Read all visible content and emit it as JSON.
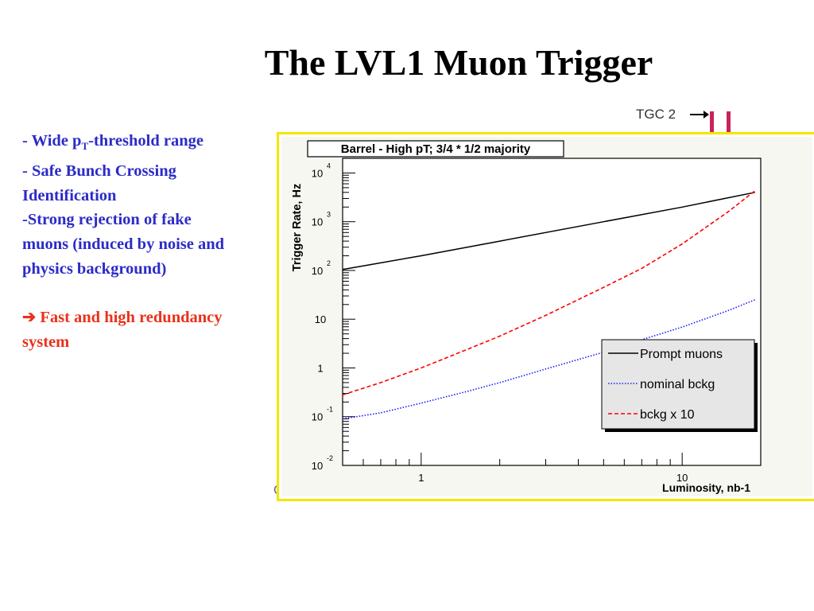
{
  "slide": {
    "title": "The LVL1 Muon Trigger",
    "bullets": {
      "b1_pre": "- Wide p",
      "b1_sub": "T",
      "b1_post": "-threshold range",
      "b2_l1": "- Safe Bunch Crossing",
      "b2_l2": "Identification",
      "b3_l1_dash": "-",
      "b3_l1": "Strong rejection of fake",
      "b3_l2": "muons (induced by noise and",
      "b3_l3": "physics background)",
      "b4_arrow": "➔",
      "b4_l1": " Fast and high redundancy",
      "b4_l2": "system"
    },
    "tgc_label": "TGC 2",
    "stray_char": "C"
  },
  "colors": {
    "title": "#000000",
    "bullet_blue": "#2b2bc8",
    "bullet_red": "#e8321a",
    "frame_yellow": "#f4e600",
    "prompt": "#000000",
    "nominal": "#1a1aff",
    "bckg10": "#ff0000"
  },
  "chart_data": {
    "type": "line",
    "title": "Barrel - High pT; 3/4 * 1/2 majority",
    "xlabel": "Luminosity, nb-1",
    "ylabel": "Trigger Rate, Hz",
    "xscale": "log",
    "yscale": "log",
    "xlim": [
      0.5,
      20
    ],
    "ylim": [
      0.01,
      20000
    ],
    "xticks": [
      {
        "value": 1,
        "label": "1"
      },
      {
        "value": 10,
        "label": "10"
      }
    ],
    "yticks": [
      {
        "value": 0.01,
        "base": "10",
        "exp": "-2"
      },
      {
        "value": 0.1,
        "base": "10",
        "exp": "-1"
      },
      {
        "value": 1,
        "base": "1",
        "exp": ""
      },
      {
        "value": 10,
        "base": "10",
        "exp": ""
      },
      {
        "value": 100,
        "base": "10",
        "exp": "2"
      },
      {
        "value": 1000,
        "base": "10",
        "exp": "3"
      },
      {
        "value": 10000,
        "base": "10",
        "exp": "4"
      }
    ],
    "grid": false,
    "legend_position": "lower-right",
    "series": [
      {
        "name": "Prompt muons",
        "style": "solid",
        "color": "#000000",
        "x": [
          0.5,
          1,
          2,
          5,
          10,
          19
        ],
        "y": [
          105,
          200,
          400,
          1000,
          2000,
          4000
        ]
      },
      {
        "name": "nominal bckg",
        "style": "dotted",
        "color": "#1a1aff",
        "x": [
          0.5,
          0.7,
          1,
          1.5,
          2,
          3,
          5,
          7,
          10,
          15,
          19
        ],
        "y": [
          0.09,
          0.12,
          0.19,
          0.33,
          0.5,
          0.95,
          2.1,
          3.8,
          6.9,
          15,
          25
        ]
      },
      {
        "name": "bckg x 10",
        "style": "dashed",
        "color": "#ff0000",
        "x": [
          0.5,
          0.7,
          1,
          1.5,
          2,
          3,
          5,
          7,
          10,
          15,
          19
        ],
        "y": [
          0.28,
          0.5,
          1.0,
          2.4,
          4.5,
          12,
          45,
          110,
          350,
          1600,
          4300
        ]
      }
    ]
  }
}
